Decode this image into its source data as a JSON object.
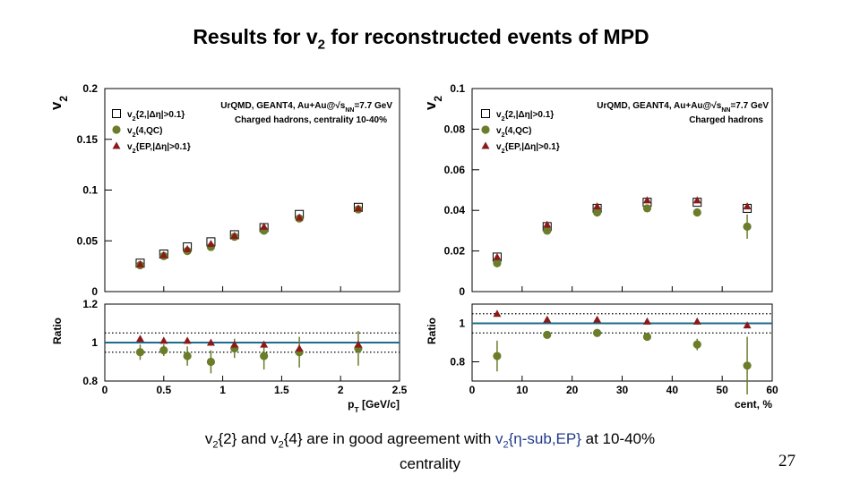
{
  "slide": {
    "title_pre": "Results for v",
    "title_sub": "2",
    "title_post": " for reconstructed events of MPD",
    "caption": {
      "a1": "v",
      "a1_sub": "2",
      "a2": "{2} and v",
      "a2_sub": "2",
      "a3": "{4} are in good agreement with ",
      "b1": "v",
      "b1_sub": "2",
      "b2": "{η-sub,EP}",
      "c1": " at 10-40%",
      "line2": "centrality"
    },
    "page_number": "27"
  },
  "colors": {
    "open_square": "#000000",
    "qc4": "#6b7d2a",
    "ep": "#8b1a1a",
    "ratio_line": "#1b6c8c",
    "dotted": "#000000"
  },
  "chart_data": [
    {
      "type": "scatter",
      "ylabel_main": "v",
      "ylabel_main_sub": "2",
      "ylabel_ratio": "Ratio",
      "xlabel": "p",
      "xlabel_sub": "T",
      "xlabel_unit": " [GeV/c]",
      "header_line1": "UrQMD, GEANT4, Au+Au@√s",
      "header_sub": "NN",
      "header_line1_post": "=7.7 GeV",
      "header_line2": "Charged hadrons, centrality 10-40%",
      "legend": [
        {
          "pre": "v",
          "sub": "2",
          "post": "{2,|Δη|>0.1}",
          "marker": "square"
        },
        {
          "pre": "v",
          "sub": "2",
          "post": "(4,QC)",
          "marker": "circle"
        },
        {
          "pre": "v",
          "sub": "2",
          "post": "{EP,|Δη|>0.1}",
          "marker": "triangle"
        }
      ],
      "xlim": [
        0,
        2.5
      ],
      "ylim_main": [
        0,
        0.2
      ],
      "ylim_ratio": [
        0.8,
        1.2
      ],
      "xticks": [
        "0",
        "0.5",
        "1",
        "1.5",
        "2",
        "2.5"
      ],
      "xtick_values": [
        0,
        0.5,
        1,
        1.5,
        2,
        2.5
      ],
      "yticks_main": [
        "0",
        "0.05",
        "0.1",
        "0.15",
        "0.2"
      ],
      "ytick_main_values": [
        0,
        0.05,
        0.1,
        0.15,
        0.2
      ],
      "yticks_ratio": [
        "0.8",
        "1",
        "1.2"
      ],
      "ytick_ratio_values": [
        0.8,
        1,
        1.2
      ],
      "ratio_dotted": [
        1.05,
        0.95
      ],
      "x": [
        0.3,
        0.5,
        0.7,
        0.9,
        1.1,
        1.35,
        1.65,
        2.15
      ],
      "v2_2": [
        0.028,
        0.037,
        0.044,
        0.049,
        0.056,
        0.063,
        0.076,
        0.083
      ],
      "v2_4qc": [
        0.026,
        0.035,
        0.04,
        0.044,
        0.054,
        0.06,
        0.072,
        0.081
      ],
      "v2_ep": [
        0.027,
        0.036,
        0.042,
        0.047,
        0.055,
        0.064,
        0.073,
        0.082
      ],
      "ratio_4qc": [
        0.95,
        0.96,
        0.93,
        0.9,
        0.97,
        0.93,
        0.95,
        0.97
      ],
      "ratio_ep": [
        1.02,
        1.01,
        1.01,
        1.0,
        0.99,
        0.99,
        0.97,
        0.99
      ],
      "ratio_4qc_err": [
        0.04,
        0.03,
        0.05,
        0.06,
        0.05,
        0.07,
        0.08,
        0.09
      ]
    },
    {
      "type": "scatter",
      "ylabel_main": "v",
      "ylabel_main_sub": "2",
      "ylabel_ratio": "Ratio",
      "xlabel": "cent, %",
      "header_line1": "UrQMD, GEANT4, Au+Au@√s",
      "header_sub": "NN",
      "header_line1_post": "=7.7 GeV",
      "header_line2": "Charged hadrons",
      "legend": [
        {
          "pre": "v",
          "sub": "2",
          "post": "{2,|Δη|>0.1}",
          "marker": "square"
        },
        {
          "pre": "v",
          "sub": "2",
          "post": "(4,QC)",
          "marker": "circle"
        },
        {
          "pre": "v",
          "sub": "2",
          "post": "{EP,|Δη|>0.1}",
          "marker": "triangle"
        }
      ],
      "xlim": [
        0,
        60
      ],
      "ylim_main": [
        0,
        0.1
      ],
      "ylim_ratio": [
        0.7,
        1.1
      ],
      "xticks": [
        "0",
        "10",
        "20",
        "30",
        "40",
        "50",
        "60"
      ],
      "xtick_values": [
        0,
        10,
        20,
        30,
        40,
        50,
        60
      ],
      "yticks_main": [
        "0",
        "0.02",
        "0.04",
        "0.06",
        "0.08",
        "0.1"
      ],
      "ytick_main_values": [
        0,
        0.02,
        0.04,
        0.06,
        0.08,
        0.1
      ],
      "yticks_ratio": [
        "0.8",
        "1"
      ],
      "ytick_ratio_values": [
        0.8,
        1.0
      ],
      "ratio_dotted": [
        1.05,
        0.95
      ],
      "x": [
        5,
        15,
        25,
        35,
        45,
        55
      ],
      "v2_2": [
        0.017,
        0.032,
        0.041,
        0.044,
        0.044,
        0.041
      ],
      "v2_4qc": [
        0.014,
        0.03,
        0.039,
        0.041,
        0.039,
        0.032
      ],
      "v2_ep": [
        0.017,
        0.033,
        0.042,
        0.045,
        0.045,
        0.042
      ],
      "v2_4qc_err": [
        0.002,
        0.001,
        0.001,
        0.001,
        0.001,
        0.006
      ],
      "ratio_4qc": [
        0.83,
        0.94,
        0.95,
        0.93,
        0.89,
        0.78
      ],
      "ratio_ep": [
        1.05,
        1.02,
        1.02,
        1.01,
        1.01,
        0.99
      ],
      "ratio_4qc_err": [
        0.08,
        0.02,
        0.02,
        0.02,
        0.03,
        0.15
      ]
    }
  ]
}
